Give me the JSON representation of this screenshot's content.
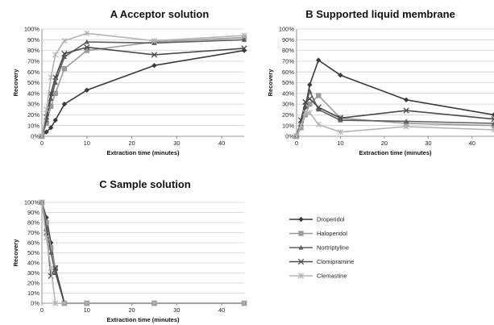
{
  "chart_data": [
    {
      "type": "line",
      "title": "A  Acceptor solution",
      "xlabel": "Extraction time (minutes)",
      "ylabel": "Recovery",
      "xlim": [
        0,
        45
      ],
      "ylim": [
        0,
        100
      ],
      "xticks": [
        "0",
        "10",
        "20",
        "30",
        "40"
      ],
      "yticks": [
        "0%",
        "10%",
        "20%",
        "30%",
        "40%",
        "50%",
        "60%",
        "70%",
        "80%",
        "90%",
        "100%"
      ],
      "grid": "horizontal",
      "x": [
        0,
        1,
        2,
        3,
        5,
        10,
        25,
        45
      ],
      "series": [
        {
          "name": "Droperidol",
          "values": [
            0,
            4,
            8,
            15,
            30,
            43,
            66,
            80
          ]
        },
        {
          "name": "Haloperidol",
          "values": [
            0,
            12,
            28,
            40,
            63,
            80,
            88,
            92
          ]
        },
        {
          "name": "Nortriptyline",
          "values": [
            0,
            15,
            35,
            50,
            74,
            88,
            87,
            90
          ]
        },
        {
          "name": "Clomipramine",
          "values": [
            0,
            18,
            40,
            55,
            77,
            83,
            76,
            82
          ]
        },
        {
          "name": "Clemastine",
          "values": [
            0,
            25,
            55,
            76,
            89,
            96,
            89,
            94
          ]
        }
      ]
    },
    {
      "type": "line",
      "title": "B  Supported liquid membrane",
      "xlabel": "Extraction time (minutes)",
      "ylabel": "Recovery",
      "xlim": [
        0,
        45
      ],
      "ylim": [
        0,
        100
      ],
      "xticks": [
        "0",
        "10",
        "20",
        "30",
        "40"
      ],
      "yticks": [
        "0%",
        "10%",
        "20%",
        "30%",
        "40%",
        "50%",
        "60%",
        "70%",
        "80%",
        "90%",
        "100%"
      ],
      "grid": "horizontal",
      "x": [
        0,
        1,
        2,
        3,
        5,
        10,
        25,
        45
      ],
      "series": [
        {
          "name": "Droperidol",
          "values": [
            0,
            10,
            27,
            48,
            71,
            57,
            34,
            20
          ]
        },
        {
          "name": "Haloperidol",
          "values": [
            0,
            8,
            20,
            30,
            38,
            17,
            12,
            10
          ]
        },
        {
          "name": "Nortriptyline",
          "values": [
            0,
            12,
            28,
            42,
            25,
            15,
            14,
            12
          ]
        },
        {
          "name": "Clomipramine",
          "values": [
            0,
            15,
            32,
            35,
            27,
            17,
            24,
            16
          ]
        },
        {
          "name": "Clemastine",
          "values": [
            0,
            10,
            22,
            22,
            11,
            4,
            9,
            6
          ]
        }
      ]
    },
    {
      "type": "line",
      "title": "C  Sample solution",
      "xlabel": "Extraction time (minutes)",
      "ylabel": "Recovery",
      "xlim": [
        0,
        45
      ],
      "ylim": [
        0,
        100
      ],
      "xticks": [
        "0",
        "10",
        "20",
        "30",
        "40"
      ],
      "yticks": [
        "0%",
        "10%",
        "20%",
        "30%",
        "40%",
        "50%",
        "60%",
        "70%",
        "80%",
        "90%",
        "100%"
      ],
      "grid": "horizontal",
      "x": [
        0,
        1,
        2,
        3,
        5,
        10,
        25,
        45
      ],
      "series": [
        {
          "name": "Droperidol",
          "values": [
            100,
            85,
            60,
            33,
            0,
            0,
            0,
            0
          ]
        },
        {
          "name": "Haloperidol",
          "values": [
            100,
            80,
            55,
            35,
            0,
            0,
            0,
            0
          ]
        },
        {
          "name": "Nortriptyline",
          "values": [
            100,
            75,
            50,
            30,
            0,
            0,
            0,
            0
          ]
        },
        {
          "name": "Clomipramine",
          "values": [
            100,
            70,
            27,
            35,
            0,
            0,
            0,
            0
          ]
        },
        {
          "name": "Clemastine",
          "values": [
            100,
            65,
            35,
            0,
            0,
            0,
            0,
            0
          ]
        }
      ]
    }
  ],
  "legend": {
    "placement": "right of panel C",
    "items": [
      {
        "name": "Droperidol",
        "color": "#3a3a3a",
        "marker": "diamond"
      },
      {
        "name": "Haloperidol",
        "color": "#9a9a9a",
        "marker": "square"
      },
      {
        "name": "Nortriptyline",
        "color": "#5e5e5e",
        "marker": "triangle"
      },
      {
        "name": "Clomipramine",
        "color": "#4a4a4a",
        "marker": "x"
      },
      {
        "name": "Clemastine",
        "color": "#b4b4b4",
        "marker": "star"
      }
    ]
  }
}
